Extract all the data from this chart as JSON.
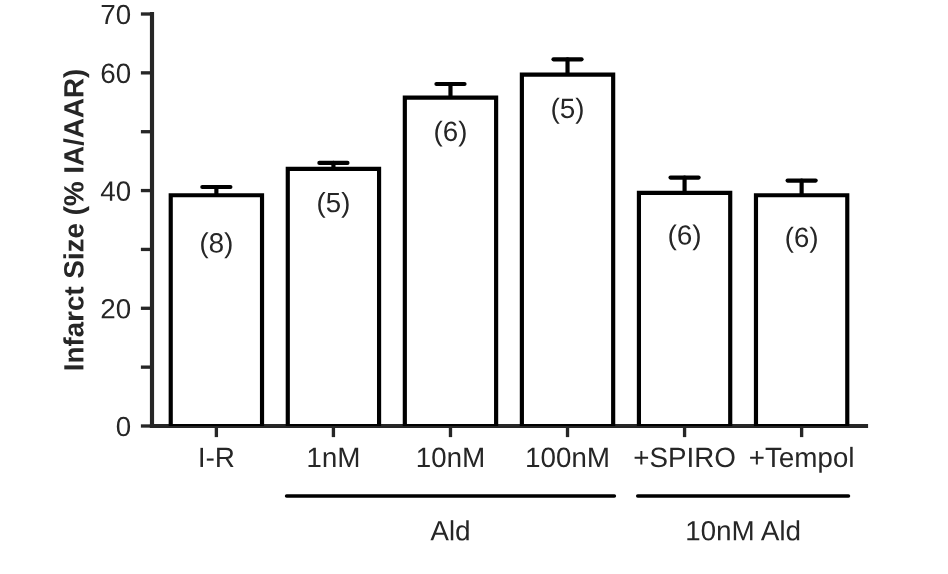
{
  "chart_data": {
    "type": "bar",
    "categories": [
      "I-R",
      "1nM",
      "10nM",
      "100nM",
      "+SPIRO",
      "+Tempol"
    ],
    "ylabel": "Infarct Size (% IA/AAR)",
    "series": [
      {
        "color": "#ffffff",
        "values": [
          39.2,
          43.7,
          55.8,
          59.7,
          39.6,
          39.2
        ],
        "errors": [
          [
            39.2,
            40.6
          ],
          [
            43.7,
            44.7
          ],
          [
            55.8,
            58.1
          ],
          [
            59.7,
            62.3
          ],
          [
            39.6,
            42.2
          ],
          [
            39.2,
            41.7
          ]
        ]
      }
    ],
    "ylim": [
      0,
      70
    ],
    "yticks": [
      0,
      {
        "value": 10,
        "label": null
      },
      20,
      {
        "value": 30,
        "label": null
      },
      40,
      {
        "value": 50,
        "label": null
      },
      60,
      70
    ],
    "annotations": [
      "(8)",
      "(5)",
      "(6)",
      "(5)",
      "(6)",
      "(6)",
      "Ald",
      "10nM Ald"
    ],
    "grid": false,
    "legend": false
  }
}
